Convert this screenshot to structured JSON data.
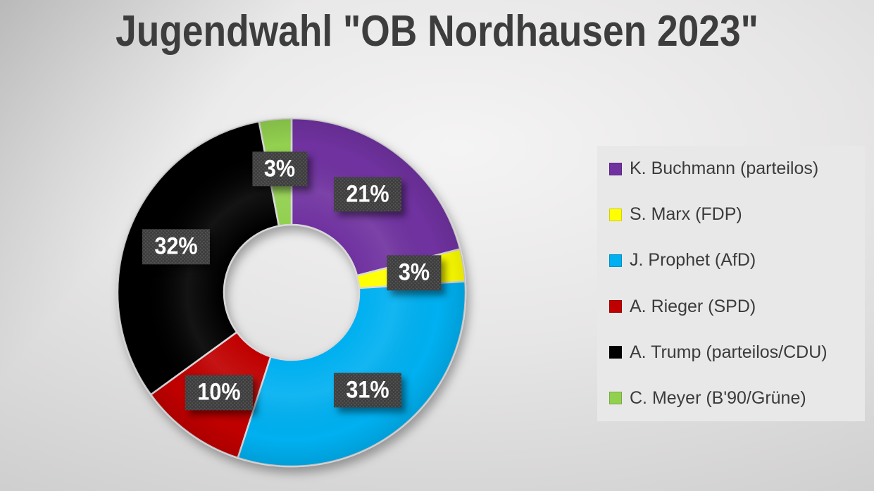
{
  "title": "Jugendwahl \"OB Nordhausen 2023\"",
  "chart_data": {
    "type": "pie",
    "subtype": "donut",
    "title": "Jugendwahl \"OB Nordhausen 2023\"",
    "unit": "%",
    "start_angle_deg": 0,
    "direction": "clockwise",
    "donut_hole_ratio": 0.39,
    "legend_position": "right",
    "gap_color": "#d8d7da",
    "label_box_color": "#3c3c3c",
    "label_text_color": "#ffffff",
    "categories": [
      "K. Buchmann (parteilos)",
      "S. Marx (FDP)",
      "J. Prophet (AfD)",
      "A. Rieger (SPD)",
      "A. Trump (parteilos/CDU)",
      "C. Meyer (B'90/Grüne)"
    ],
    "values": [
      21,
      3,
      31,
      10,
      32,
      3
    ],
    "slices": [
      {
        "label": "K. Buchmann (parteilos)",
        "value": 21,
        "color": "#7030A0",
        "data_label": "21%"
      },
      {
        "label": "S. Marx (FDP)",
        "value": 3,
        "color": "#FFFF00",
        "data_label": "3%"
      },
      {
        "label": "J. Prophet (AfD)",
        "value": 31,
        "color": "#00B0F0",
        "data_label": "31%"
      },
      {
        "label": "A. Rieger (SPD)",
        "value": 10,
        "color": "#C00000",
        "data_label": "10%"
      },
      {
        "label": "A. Trump (parteilos/CDU)",
        "value": 32,
        "color": "#000000",
        "data_label": "32%"
      },
      {
        "label": "C. Meyer (B'90/Grüne)",
        "value": 3,
        "color": "#92D050",
        "data_label": "3%"
      }
    ]
  }
}
